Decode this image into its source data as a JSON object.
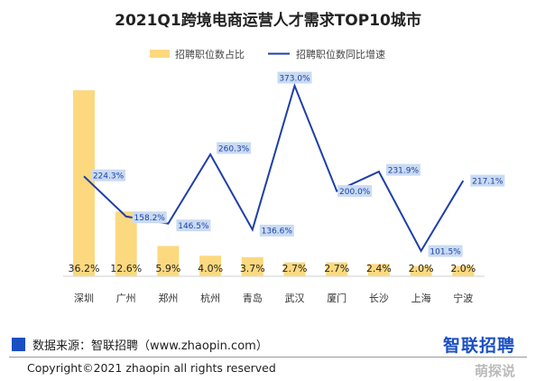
{
  "chart_data": {
    "type": "bar+line",
    "title": "2021Q1跨境电商运营人才需求TOP10城市",
    "legend": [
      "招聘职位数占比",
      "招聘职位数同比增速"
    ],
    "legend_position": "top",
    "categories": [
      "深圳",
      "广州",
      "郑州",
      "杭州",
      "青岛",
      "武汉",
      "厦门",
      "长沙",
      "上海",
      "宁波"
    ],
    "series": [
      {
        "name": "招聘职位数占比",
        "type": "bar",
        "color": "#fcd97f",
        "values": [
          36.2,
          12.6,
          5.9,
          4.0,
          3.7,
          2.7,
          2.7,
          2.4,
          2.0,
          2.0
        ],
        "labels": [
          "36.2%",
          "12.6%",
          "5.9%",
          "4.0%",
          "3.7%",
          "2.7%",
          "2.7%",
          "2.4%",
          "2.0%",
          "2.0%"
        ]
      },
      {
        "name": "招聘职位数同比增速",
        "type": "line",
        "color": "#1f3fa8",
        "values": [
          224.3,
          158.2,
          146.5,
          260.3,
          136.6,
          373.0,
          200.0,
          231.9,
          101.5,
          217.1
        ],
        "labels": [
          "224.3%",
          "158.2%",
          "146.5%",
          "260.3%",
          "136.6%",
          "373.0%",
          "200.0%",
          "231.9%",
          "101.5%",
          "217.1%"
        ]
      }
    ],
    "grid": false
  },
  "footer": {
    "source": "数据来源：智联招聘（www.zhaopin.com）",
    "logo": "智联招聘",
    "copyright": "Copyright©2021 zhaopin all rights reserved",
    "watermark": "萌探说"
  }
}
